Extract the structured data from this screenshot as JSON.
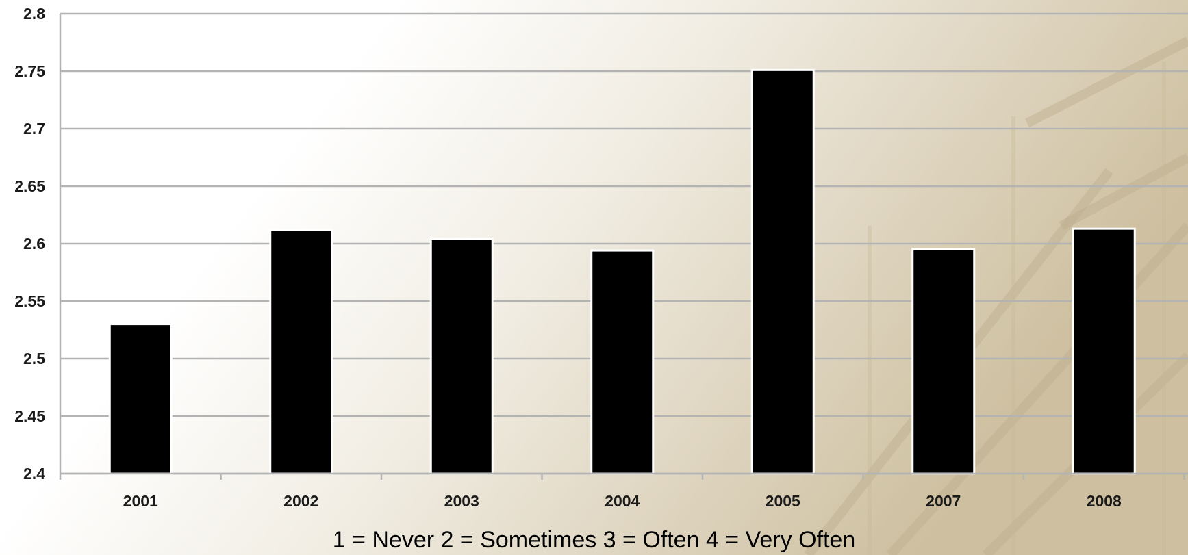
{
  "chart_data": {
    "type": "bar",
    "categories": [
      "2001",
      "2002",
      "2003",
      "2004",
      "2005",
      "2007",
      "2008"
    ],
    "values": [
      2.53,
      2.612,
      2.604,
      2.594,
      2.751,
      2.595,
      2.613
    ],
    "title": "",
    "xlabel": "",
    "ylabel": "",
    "ylim": [
      2.4,
      2.8
    ],
    "yticks": [
      "2.4",
      "2.45",
      "2.5",
      "2.55",
      "2.6",
      "2.65",
      "2.7",
      "2.75",
      "2.8"
    ],
    "grid": true,
    "legend": "none",
    "bar_color": "#000000",
    "bar_edge_color": "#ffffff",
    "grid_color": "#b3b3b3"
  },
  "footnote": "1 = Never  2 = Sometimes  3 = Often  4 = Very Often"
}
